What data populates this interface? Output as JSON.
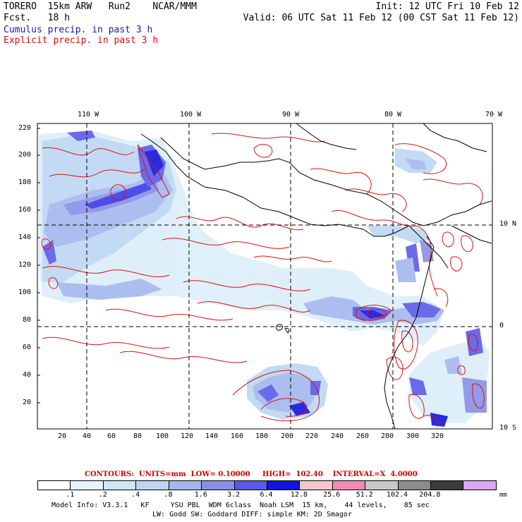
{
  "header": {
    "model": "TORERO  15km ARW   Run2    NCAR/MMM",
    "init": "Init: 12 UTC Fri 10 Feb 12",
    "fcst": "Fcst.   18 h",
    "valid": "Valid: 06 UTC Sat 11 Feb 12 (00 CST Sat 11 Feb 12)",
    "legend_cumulus": "Cumulus precip. in past 3 h",
    "legend_explicit": "Explicit precip. in past 3 h"
  },
  "axes": {
    "top_lon": [
      "110 W",
      "100 W",
      "90 W",
      "80 W",
      "70 W"
    ],
    "right_lat": [
      "10 N",
      "0",
      "10 S"
    ],
    "left_y": [
      "220",
      "200",
      "180",
      "160",
      "140",
      "120",
      "100",
      "80",
      "60",
      "40",
      "20"
    ],
    "bottom_x": [
      "20",
      "40",
      "60",
      "80",
      "100",
      "120",
      "140",
      "160",
      "180",
      "200",
      "220",
      "240",
      "260",
      "280",
      "300",
      "320"
    ]
  },
  "contour_info": {
    "label": "CONTOURS:  UNITS=mm  LOW= 0.10000     HIGH=  102.40    INTERVAL=X  4.0000"
  },
  "colorbar": {
    "colors": [
      "#ffffff",
      "#e8f4fb",
      "#d0e6f6",
      "#bcd6f2",
      "#a4b8ee",
      "#8890e6",
      "#5a5ae8",
      "#1414e0",
      "#f0c8cc",
      "#f08cb4",
      "#c8c8c8",
      "#8c8c8c",
      "#3c3c3c",
      "#d8a8f0"
    ],
    "labels": [
      ".1",
      ".2",
      ".4",
      ".8",
      "1.6",
      "3.2",
      "6.4",
      "12.8",
      "25.6",
      "51.2",
      "102.4",
      "204.8"
    ],
    "units": "mm"
  },
  "footer": {
    "line1": "Model Info: V3.3.1   KF     YSU PBL  WDM 6class  Noah LSM  15 km,    44 levels,    85 sec",
    "line2": "LW: Godd SW: Goddard DIFF: simple KM: 2D Smagor"
  }
}
